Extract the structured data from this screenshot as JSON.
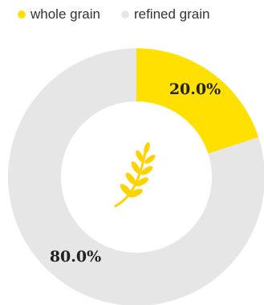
{
  "chart_data": {
    "type": "pie",
    "categories": [
      "whole grain",
      "refined grain"
    ],
    "values": [
      20.0,
      80.0
    ],
    "labels": [
      "20.0%",
      "80.0%"
    ],
    "colors": [
      "#ffe000",
      "#e6e6e6"
    ],
    "donut": true,
    "legend_position": "top",
    "center_icon": "wheat-icon"
  },
  "legend": {
    "items": [
      {
        "label": "whole grain",
        "color": "#ffe000"
      },
      {
        "label": "refined grain",
        "color": "#e6e6e6"
      }
    ]
  }
}
